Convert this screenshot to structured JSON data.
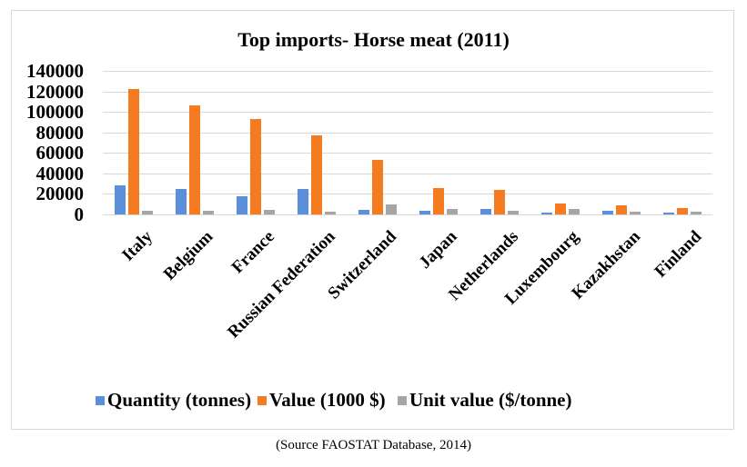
{
  "chart": {
    "title": "Top imports- Horse meat (2011)",
    "caption": "(Source FAOSTAT Database, 2014)"
  },
  "legend": [
    {
      "label": "Quantity (tonnes)",
      "color": "#5b8fd9"
    },
    {
      "label": "Value (1000 $)",
      "color": "#f47b20"
    },
    {
      "label": "Unit value ($/tonne)",
      "color": "#a5a5a5"
    }
  ],
  "yaxis": {
    "ticks": [
      "0",
      "20000",
      "40000",
      "60000",
      "80000",
      "100000",
      "120000",
      "140000"
    ]
  },
  "chart_data": {
    "type": "bar",
    "title": "Top imports- Horse meat (2011)",
    "xlabel": "",
    "ylabel": "",
    "ylim": [
      0,
      140000
    ],
    "yticks": [
      0,
      20000,
      40000,
      60000,
      80000,
      100000,
      120000,
      140000
    ],
    "grid": true,
    "legend_position": "bottom",
    "categories": [
      "Italy",
      "Belgium",
      "France",
      "Russian Federation",
      "Switzerland",
      "Japan",
      "Netherlands",
      "Luxembourg",
      "Kazakhstan",
      "Finland"
    ],
    "series": [
      {
        "name": "Quantity (tonnes)",
        "color": "#5b8fd9",
        "values": [
          28500,
          25000,
          18000,
          25000,
          4500,
          3800,
          5300,
          1500,
          3600,
          1800
        ]
      },
      {
        "name": "Value (1000 $)",
        "color": "#f47b20",
        "values": [
          122500,
          106000,
          93000,
          77000,
          53000,
          25800,
          24200,
          10900,
          9300,
          5900
        ]
      },
      {
        "name": "Unit value ($/tonne)",
        "color": "#a5a5a5",
        "values": [
          3600,
          3600,
          4700,
          2500,
          10000,
          5300,
          3600,
          5200,
          2500,
          2700
        ]
      }
    ],
    "annotations": [
      "(Source FAOSTAT Database, 2014)"
    ]
  }
}
